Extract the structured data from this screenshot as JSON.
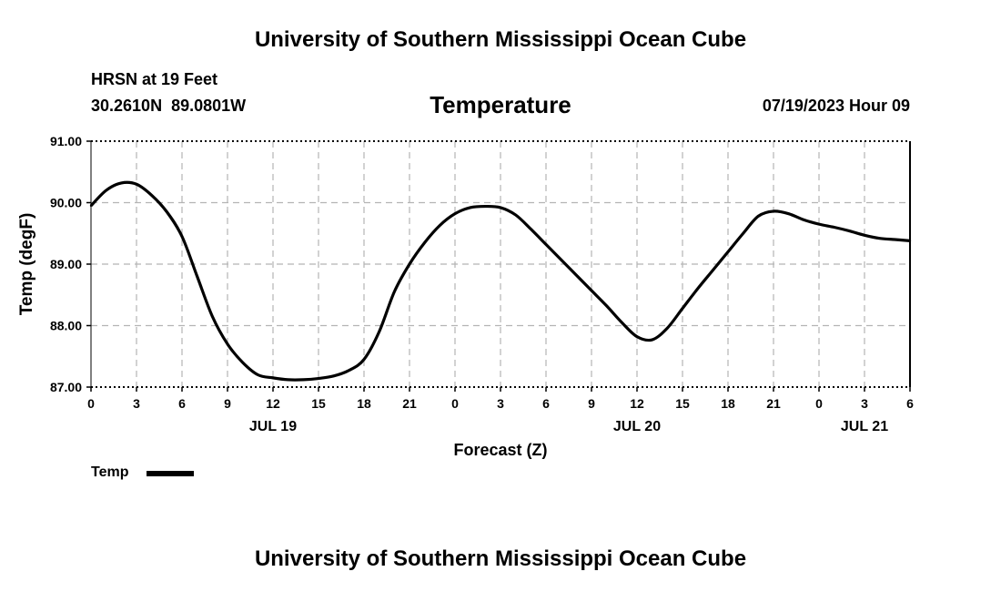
{
  "header": {
    "title_top": "University of Southern Mississippi Ocean Cube",
    "station": "HRSN at 19 Feet",
    "coords": "30.2610N  89.0801W",
    "plot_title": "Temperature",
    "timestamp": "07/19/2023 Hour 09"
  },
  "legend": {
    "label": "Temp"
  },
  "footer": {
    "title_bottom": "University of Southern Mississippi Ocean Cube"
  },
  "colors": {
    "line": "#000000",
    "grid": "#b4b4b4",
    "background": "#ffffff"
  },
  "chart_data": {
    "type": "line",
    "title": "Temperature",
    "xlabel": "Forecast (Z)",
    "ylabel": "Temp (degF)",
    "ylim": [
      87.0,
      91.0
    ],
    "yticks": [
      "87.00",
      "88.00",
      "89.00",
      "90.00",
      "91.00"
    ],
    "xticks": [
      "0",
      "3",
      "6",
      "9",
      "12",
      "15",
      "18",
      "21",
      "0",
      "3",
      "6",
      "9",
      "12",
      "15",
      "18",
      "21",
      "0",
      "3",
      "6"
    ],
    "date_labels": [
      {
        "label": "JUL 19",
        "hour": 12
      },
      {
        "label": "JUL 20",
        "hour": 36
      },
      {
        "label": "JUL 21",
        "hour": 51
      }
    ],
    "grid": true,
    "legend_position": "bottom-left",
    "series": [
      {
        "name": "Temp",
        "x": [
          0,
          1,
          2,
          3,
          4,
          5,
          6,
          7,
          8,
          9,
          10,
          11,
          12,
          13,
          14,
          15,
          16,
          17,
          18,
          19,
          20,
          21,
          22,
          23,
          24,
          25,
          26,
          27,
          28,
          29,
          30,
          31,
          32,
          33,
          34,
          35,
          36,
          37,
          38,
          39,
          40,
          41,
          42,
          43,
          44,
          45,
          46,
          47,
          48,
          49,
          50,
          51,
          52,
          53,
          54
        ],
        "values": [
          89.95,
          90.2,
          90.32,
          90.3,
          90.12,
          89.85,
          89.45,
          88.8,
          88.15,
          87.7,
          87.4,
          87.2,
          87.15,
          87.12,
          87.12,
          87.14,
          87.18,
          87.27,
          87.45,
          87.9,
          88.55,
          89.0,
          89.35,
          89.63,
          89.82,
          89.92,
          89.94,
          89.92,
          89.8,
          89.57,
          89.32,
          89.07,
          88.82,
          88.57,
          88.32,
          88.05,
          87.82,
          87.77,
          87.96,
          88.28,
          88.6,
          88.9,
          89.2,
          89.5,
          89.78,
          89.86,
          89.82,
          89.72,
          89.65,
          89.6,
          89.54,
          89.47,
          89.42,
          89.4,
          89.38
        ]
      }
    ]
  }
}
